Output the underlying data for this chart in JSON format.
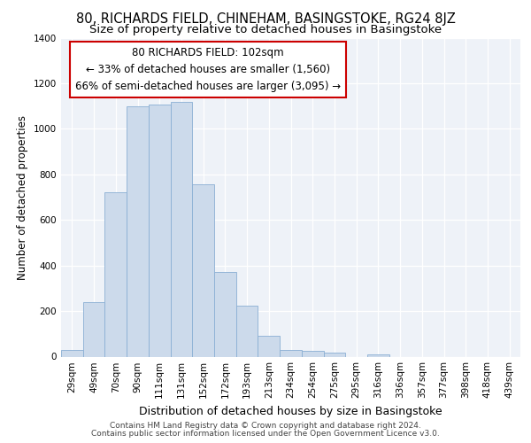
{
  "title1": "80, RICHARDS FIELD, CHINEHAM, BASINGSTOKE, RG24 8JZ",
  "title2": "Size of property relative to detached houses in Basingstoke",
  "xlabel": "Distribution of detached houses by size in Basingstoke",
  "ylabel": "Number of detached properties",
  "footer1": "Contains HM Land Registry data © Crown copyright and database right 2024.",
  "footer2": "Contains public sector information licensed under the Open Government Licence v3.0.",
  "annotation_line1": "80 RICHARDS FIELD: 102sqm",
  "annotation_line2": "← 33% of detached houses are smaller (1,560)",
  "annotation_line3": "66% of semi-detached houses are larger (3,095) →",
  "bar_values": [
    30,
    240,
    720,
    1100,
    1105,
    1120,
    755,
    370,
    225,
    90,
    30,
    25,
    18,
    0,
    10,
    0,
    0,
    0,
    0,
    0,
    0
  ],
  "bar_labels": [
    "29sqm",
    "49sqm",
    "70sqm",
    "90sqm",
    "111sqm",
    "131sqm",
    "152sqm",
    "172sqm",
    "193sqm",
    "213sqm",
    "234sqm",
    "254sqm",
    "275sqm",
    "295sqm",
    "316sqm",
    "336sqm",
    "357sqm",
    "377sqm",
    "398sqm",
    "418sqm",
    "439sqm"
  ],
  "bar_color": "#ccdaeb",
  "bar_edge_color": "#8aafd4",
  "ylim": [
    0,
    1400
  ],
  "yticks": [
    0,
    200,
    400,
    600,
    800,
    1000,
    1200,
    1400
  ],
  "annotation_box_color": "#cc0000",
  "background_color": "#eef2f8",
  "title1_fontsize": 10.5,
  "title2_fontsize": 9.5,
  "xlabel_fontsize": 9,
  "ylabel_fontsize": 8.5,
  "annotation_fontsize": 8.5,
  "tick_fontsize": 7.5,
  "footer_fontsize": 6.5
}
